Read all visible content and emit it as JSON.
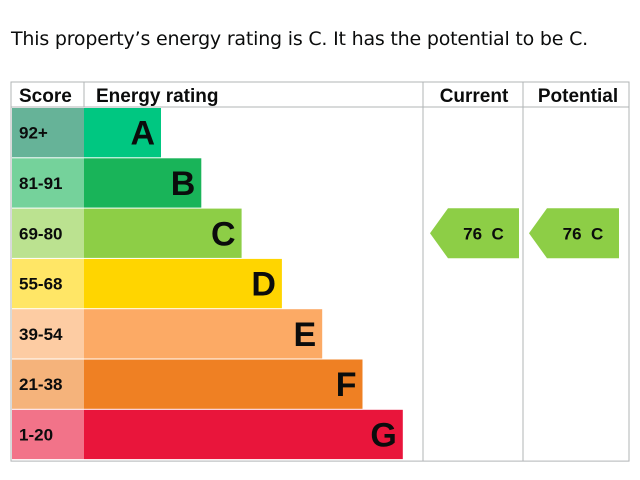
{
  "summary_text": "This property’s energy rating is C. It has the potential to be C.",
  "chart_data": {
    "type": "table",
    "headers": {
      "score": "Score",
      "rating": "Energy rating",
      "current": "Current",
      "potential": "Potential"
    },
    "bands": [
      {
        "score": "92+",
        "letter": "A",
        "color": "#008054",
        "score_bg": "#66b398",
        "bar": "#00c781"
      },
      {
        "score": "81-91",
        "letter": "B",
        "color": "#19b459",
        "score_bg": "#75d29b",
        "bar": "#19b459"
      },
      {
        "score": "69-80",
        "letter": "C",
        "color": "#8dce46",
        "score_bg": "#bbe290",
        "bar": "#8dce46"
      },
      {
        "score": "55-68",
        "letter": "D",
        "color": "#ffd500",
        "score_bg": "#ffe666",
        "bar": "#ffd500"
      },
      {
        "score": "39-54",
        "letter": "E",
        "color": "#fcaa65",
        "score_bg": "#fdcca3",
        "bar": "#fcaa65"
      },
      {
        "score": "21-38",
        "letter": "F",
        "color": "#ef8023",
        "score_bg": "#f5b37b",
        "bar": "#ef8023"
      },
      {
        "score": "1-20",
        "letter": "G",
        "color": "#e9153b",
        "score_bg": "#f27389",
        "bar": "#e9153b"
      }
    ],
    "current": {
      "value": 76,
      "letter": "C",
      "label": "76  C",
      "color": "#8dce46"
    },
    "potential": {
      "value": 76,
      "letter": "C",
      "label": "76  C",
      "color": "#8dce46"
    }
  }
}
